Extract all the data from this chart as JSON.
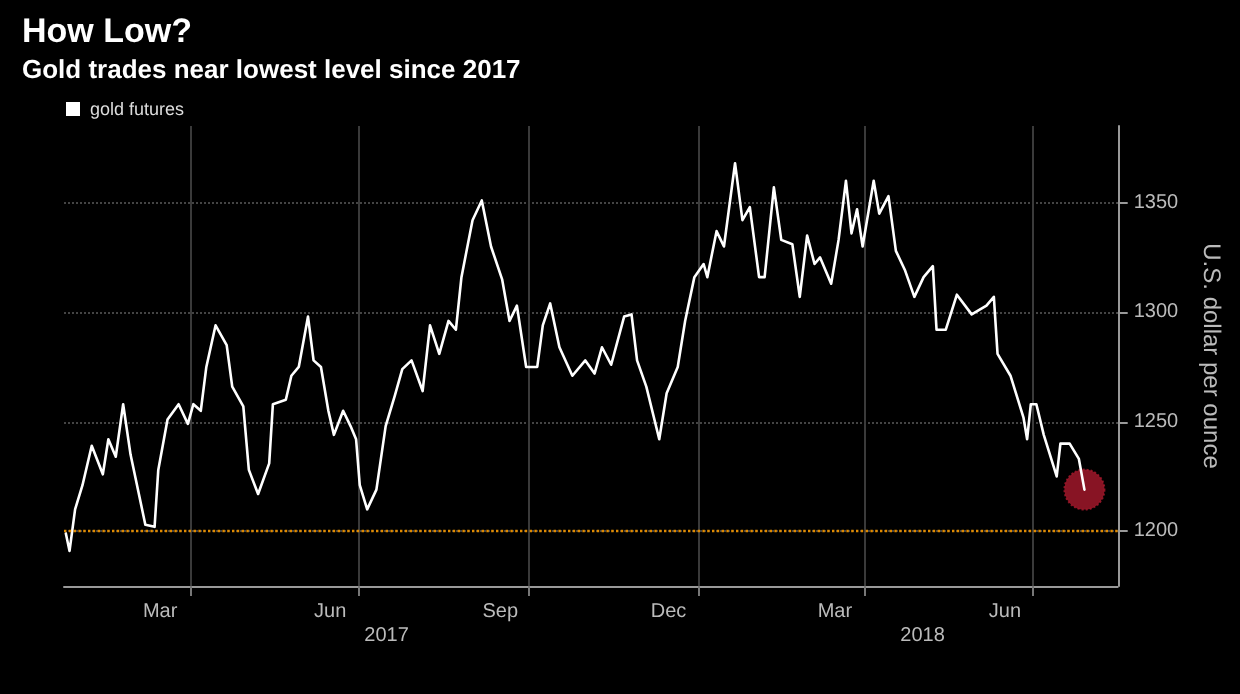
{
  "chart_data": {
    "type": "line",
    "title": "How Low?",
    "subtitle": "Gold trades near lowest level since 2017",
    "ylabel": "U.S. dollar per ounce",
    "annotations": [
      "2017",
      "2018"
    ],
    "x": [
      "2017-01-24",
      "2017-01-26",
      "2017-01-29",
      "2017-02-02",
      "2017-02-07",
      "2017-02-13",
      "2017-02-16",
      "2017-02-20",
      "2017-02-24",
      "2017-02-28",
      "2017-03-08",
      "2017-03-13",
      "2017-03-15",
      "2017-03-20",
      "2017-03-26",
      "2017-03-31",
      "2017-04-03",
      "2017-04-07",
      "2017-04-10",
      "2017-04-15",
      "2017-04-21",
      "2017-04-24",
      "2017-04-30",
      "2017-05-03",
      "2017-05-08",
      "2017-05-14",
      "2017-05-16",
      "2017-05-23",
      "2017-05-26",
      "2017-05-30",
      "2017-06-04",
      "2017-06-07",
      "2017-06-11",
      "2017-06-15",
      "2017-06-18",
      "2017-06-23",
      "2017-06-27",
      "2017-06-30",
      "2017-07-02",
      "2017-07-06",
      "2017-07-11",
      "2017-07-16",
      "2017-07-21",
      "2017-07-25",
      "2017-07-30",
      "2017-08-05",
      "2017-08-09",
      "2017-08-14",
      "2017-08-19",
      "2017-08-23",
      "2017-08-26",
      "2017-09-01",
      "2017-09-06",
      "2017-09-11",
      "2017-09-17",
      "2017-09-21",
      "2017-09-25",
      "2017-09-30",
      "2017-10-06",
      "2017-10-09",
      "2017-10-13",
      "2017-10-18",
      "2017-10-25",
      "2017-11-01",
      "2017-11-06",
      "2017-11-10",
      "2017-11-15",
      "2017-11-22",
      "2017-11-26",
      "2017-11-29",
      "2017-12-04",
      "2017-12-11",
      "2017-12-15",
      "2017-12-21",
      "2017-12-25",
      "2017-12-30",
      "2018-01-04",
      "2018-01-06",
      "2018-01-11",
      "2018-01-15",
      "2018-01-21",
      "2018-01-25",
      "2018-01-29",
      "2018-02-03",
      "2018-02-06",
      "2018-02-11",
      "2018-02-15",
      "2018-02-21",
      "2018-02-25",
      "2018-03-01",
      "2018-03-05",
      "2018-03-08",
      "2018-03-14",
      "2018-03-18",
      "2018-03-22",
      "2018-03-25",
      "2018-03-28",
      "2018-03-31",
      "2018-04-06",
      "2018-04-09",
      "2018-04-14",
      "2018-04-18",
      "2018-04-23",
      "2018-04-28",
      "2018-05-03",
      "2018-05-08",
      "2018-05-10",
      "2018-05-15",
      "2018-05-21",
      "2018-05-29",
      "2018-06-06",
      "2018-06-10",
      "2018-06-12",
      "2018-06-19",
      "2018-06-26",
      "2018-06-28",
      "2018-06-30",
      "2018-07-03",
      "2018-07-07",
      "2018-07-14",
      "2018-07-16",
      "2018-07-21",
      "2018-07-26",
      "2018-07-29"
    ],
    "series": [
      {
        "name": "gold futures",
        "color": "#ffffff",
        "marker": "none",
        "values": [
          1199,
          1191,
          1210,
          1221,
          1239,
          1226,
          1242,
          1234,
          1258,
          1235,
          1203,
          1202,
          1228,
          1251,
          1258,
          1249,
          1258,
          1255,
          1275,
          1294,
          1285,
          1266,
          1257,
          1228,
          1217,
          1231,
          1258,
          1260,
          1271,
          1275,
          1298,
          1278,
          1275,
          1255,
          1244,
          1255,
          1248,
          1242,
          1221,
          1210,
          1219,
          1248,
          1262,
          1274,
          1278,
          1264,
          1294,
          1281,
          1296,
          1292,
          1316,
          1342,
          1351,
          1330,
          1315,
          1296,
          1303,
          1275,
          1275,
          1294,
          1304,
          1284,
          1271,
          1278,
          1272,
          1284,
          1276,
          1298,
          1299,
          1278,
          1266,
          1242,
          1263,
          1275,
          1296,
          1316,
          1322,
          1316,
          1337,
          1330,
          1368,
          1342,
          1348,
          1316,
          1316,
          1357,
          1333,
          1331,
          1307,
          1335,
          1322,
          1325,
          1313,
          1333,
          1360,
          1336,
          1347,
          1330,
          1360,
          1345,
          1353,
          1328,
          1319,
          1307,
          1316,
          1321,
          1292,
          1292,
          1308,
          1299,
          1303,
          1307,
          1281,
          1271,
          1252,
          1242,
          1258,
          1258,
          1244,
          1225,
          1240,
          1240,
          1233,
          1219
        ]
      },
      {
        "type": "scatter",
        "color": "#a0182a",
        "marker": "circle",
        "x": [
          "2018-07-29"
        ],
        "values": [
          1219
        ]
      }
    ],
    "xlim": [
      "2017-01-23",
      "2018-08-16"
    ],
    "xticks": [
      {
        "value": "2017-03-16",
        "label": "Mar"
      },
      {
        "value": "2017-04-01",
        "label": null
      },
      {
        "value": "2017-06-16",
        "label": "Jun"
      },
      {
        "value": "2017-07-01",
        "label": null
      },
      {
        "value": "2017-09-16",
        "label": "Sep"
      },
      {
        "value": "2017-10-01",
        "label": null
      },
      {
        "value": "2017-12-16",
        "label": "Dec"
      },
      {
        "value": "2018-01-01",
        "label": null
      },
      {
        "value": "2018-03-16",
        "label": "Mar"
      },
      {
        "value": "2018-04-01",
        "label": null
      },
      {
        "value": "2018-06-16",
        "label": "Jun"
      },
      {
        "value": "2018-07-01",
        "label": null
      }
    ],
    "ylim": [
      1175,
      1385
    ],
    "yticks": [
      1200,
      1250,
      1300,
      1350
    ],
    "ref_lines": [
      {
        "axis": "y",
        "value": 1200,
        "color": "#e08a00",
        "line_style": "dotted"
      }
    ],
    "grid": true,
    "legend": "top left",
    "line_style": "solid"
  }
}
